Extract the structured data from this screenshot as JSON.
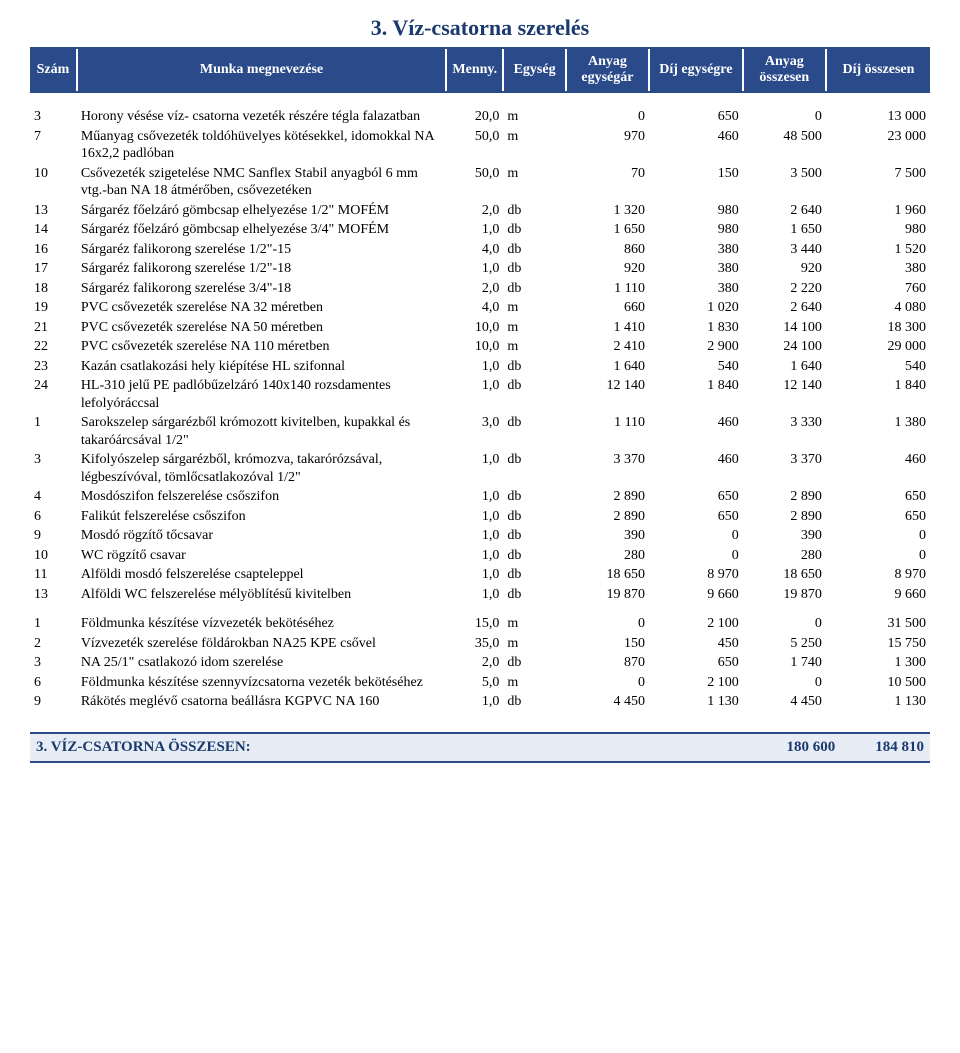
{
  "title": "3. Víz-csatorna szerelés",
  "headers": {
    "szam": "Szám",
    "munka": "Munka megnevezése",
    "menny": "Menny.",
    "egyseg": "Egység",
    "anyag_egysegar": "Anyag egységár",
    "dij_egysegre": "Díj egységre",
    "anyag_osszesen": "Anyag összesen",
    "dij_osszesen": "Díj összesen"
  },
  "rows": [
    {
      "n": "3",
      "name": "Horony vésése víz- csatorna vezeték részére tégla falazatban",
      "q": "20,0",
      "u": "m",
      "a1": "0",
      "d1": "650",
      "a2": "0",
      "d2": "13 000"
    },
    {
      "n": "7",
      "name": "Műanyag csővezeték toldóhüvelyes kötésekkel, idomokkal NA 16x2,2 padlóban",
      "q": "50,0",
      "u": "m",
      "a1": "970",
      "d1": "460",
      "a2": "48 500",
      "d2": "23 000"
    },
    {
      "n": "10",
      "name": "Csővezeték szigetelése NMC Sanflex Stabil anyagból 6 mm vtg.-ban NA 18 átmérőben, csővezetéken",
      "q": "50,0",
      "u": "m",
      "a1": "70",
      "d1": "150",
      "a2": "3 500",
      "d2": "7 500"
    },
    {
      "n": "13",
      "name": "Sárgaréz főelzáró gömbcsap elhelyezése 1/2\" MOFÉM",
      "q": "2,0",
      "u": "db",
      "a1": "1 320",
      "d1": "980",
      "a2": "2 640",
      "d2": "1 960"
    },
    {
      "n": "14",
      "name": "Sárgaréz főelzáró gömbcsap elhelyezése 3/4\" MOFÉM",
      "q": "1,0",
      "u": "db",
      "a1": "1 650",
      "d1": "980",
      "a2": "1 650",
      "d2": "980"
    },
    {
      "n": "16",
      "name": "Sárgaréz falikorong szerelése 1/2\"-15",
      "q": "4,0",
      "u": "db",
      "a1": "860",
      "d1": "380",
      "a2": "3 440",
      "d2": "1 520"
    },
    {
      "n": "17",
      "name": "Sárgaréz falikorong szerelése 1/2\"-18",
      "q": "1,0",
      "u": "db",
      "a1": "920",
      "d1": "380",
      "a2": "920",
      "d2": "380"
    },
    {
      "n": "18",
      "name": "Sárgaréz falikorong szerelése 3/4\"-18",
      "q": "2,0",
      "u": "db",
      "a1": "1 110",
      "d1": "380",
      "a2": "2 220",
      "d2": "760"
    },
    {
      "n": "19",
      "name": "PVC csővezeték szerelése NA 32 méretben",
      "q": "4,0",
      "u": "m",
      "a1": "660",
      "d1": "1 020",
      "a2": "2 640",
      "d2": "4 080"
    },
    {
      "n": "21",
      "name": "PVC csővezeték szerelése NA 50 méretben",
      "q": "10,0",
      "u": "m",
      "a1": "1 410",
      "d1": "1 830",
      "a2": "14 100",
      "d2": "18 300"
    },
    {
      "n": "22",
      "name": "PVC csővezeték szerelése NA 110 méretben",
      "q": "10,0",
      "u": "m",
      "a1": "2 410",
      "d1": "2 900",
      "a2": "24 100",
      "d2": "29 000"
    },
    {
      "n": "23",
      "name": "Kazán csatlakozási hely kiépítése HL szifonnal",
      "q": "1,0",
      "u": "db",
      "a1": "1 640",
      "d1": "540",
      "a2": "1 640",
      "d2": "540"
    },
    {
      "n": "24",
      "name": "HL-310 jelű PE padlóbűzelzáró 140x140 rozsdamentes lefolyóráccsal",
      "q": "1,0",
      "u": "db",
      "a1": "12 140",
      "d1": "1 840",
      "a2": "12 140",
      "d2": "1 840"
    },
    {
      "n": "1",
      "name": "Sarokszelep sárgarézből krómozott kivitelben, kupakkal és takaróárcsával 1/2\"",
      "q": "3,0",
      "u": "db",
      "a1": "1 110",
      "d1": "460",
      "a2": "3 330",
      "d2": "1 380"
    },
    {
      "n": "3",
      "name": "Kifolyószelep sárgarézből, krómozva, takarórózsával, légbeszívóval, tömlőcsatlakozóval 1/2\"",
      "q": "1,0",
      "u": "db",
      "a1": "3 370",
      "d1": "460",
      "a2": "3 370",
      "d2": "460"
    },
    {
      "n": "4",
      "name": "Mosdószifon felszerelése csőszifon",
      "q": "1,0",
      "u": "db",
      "a1": "2 890",
      "d1": "650",
      "a2": "2 890",
      "d2": "650"
    },
    {
      "n": "6",
      "name": "Falikút felszerelése csőszifon",
      "q": "1,0",
      "u": "db",
      "a1": "2 890",
      "d1": "650",
      "a2": "2 890",
      "d2": "650"
    },
    {
      "n": "9",
      "name": "Mosdó rögzítő tőcsavar",
      "q": "1,0",
      "u": "db",
      "a1": "390",
      "d1": "0",
      "a2": "390",
      "d2": "0"
    },
    {
      "n": "10",
      "name": "WC rögzítő csavar",
      "q": "1,0",
      "u": "db",
      "a1": "280",
      "d1": "0",
      "a2": "280",
      "d2": "0"
    },
    {
      "n": "11",
      "name": "Alföldi mosdó felszerelése csapteleppel",
      "q": "1,0",
      "u": "db",
      "a1": "18 650",
      "d1": "8 970",
      "a2": "18 650",
      "d2": "8 970"
    },
    {
      "n": "13",
      "name": "Alföldi WC felszerelése mélyöblítésű kivitelben",
      "q": "1,0",
      "u": "db",
      "a1": "19 870",
      "d1": "9 660",
      "a2": "19 870",
      "d2": "9 660"
    }
  ],
  "rows2": [
    {
      "n": "1",
      "name": "Földmunka készítése vízvezeték bekötéséhez",
      "q": "15,0",
      "u": "m",
      "a1": "0",
      "d1": "2 100",
      "a2": "0",
      "d2": "31 500"
    },
    {
      "n": "2",
      "name": "Vízvezeték szerelése földárokban NA25 KPE csővel",
      "q": "35,0",
      "u": "m",
      "a1": "150",
      "d1": "450",
      "a2": "5 250",
      "d2": "15 750"
    },
    {
      "n": "3",
      "name": "NA 25/1\" csatlakozó idom szerelése",
      "q": "2,0",
      "u": "db",
      "a1": "870",
      "d1": "650",
      "a2": "1 740",
      "d2": "1 300"
    },
    {
      "n": "6",
      "name": "Földmunka készítése szennyvízcsatorna vezeték bekötéséhez",
      "q": "5,0",
      "u": "m",
      "a1": "0",
      "d1": "2 100",
      "a2": "0",
      "d2": "10 500"
    },
    {
      "n": "9",
      "name": "Rákötés meglévő csatorna beállásra KGPVC NA 160",
      "q": "1,0",
      "u": "db",
      "a1": "4 450",
      "d1": "1 130",
      "a2": "4 450",
      "d2": "1 130"
    }
  ],
  "total": {
    "label": "3. VÍZ-CSATORNA ÖSSZESEN:",
    "anyag": "180 600",
    "dij": "184 810"
  },
  "colors": {
    "header_bg": "#2a4a8a",
    "header_fg": "#ffffff",
    "total_bg": "#e8edf5",
    "total_fg": "#1a3a6e"
  }
}
